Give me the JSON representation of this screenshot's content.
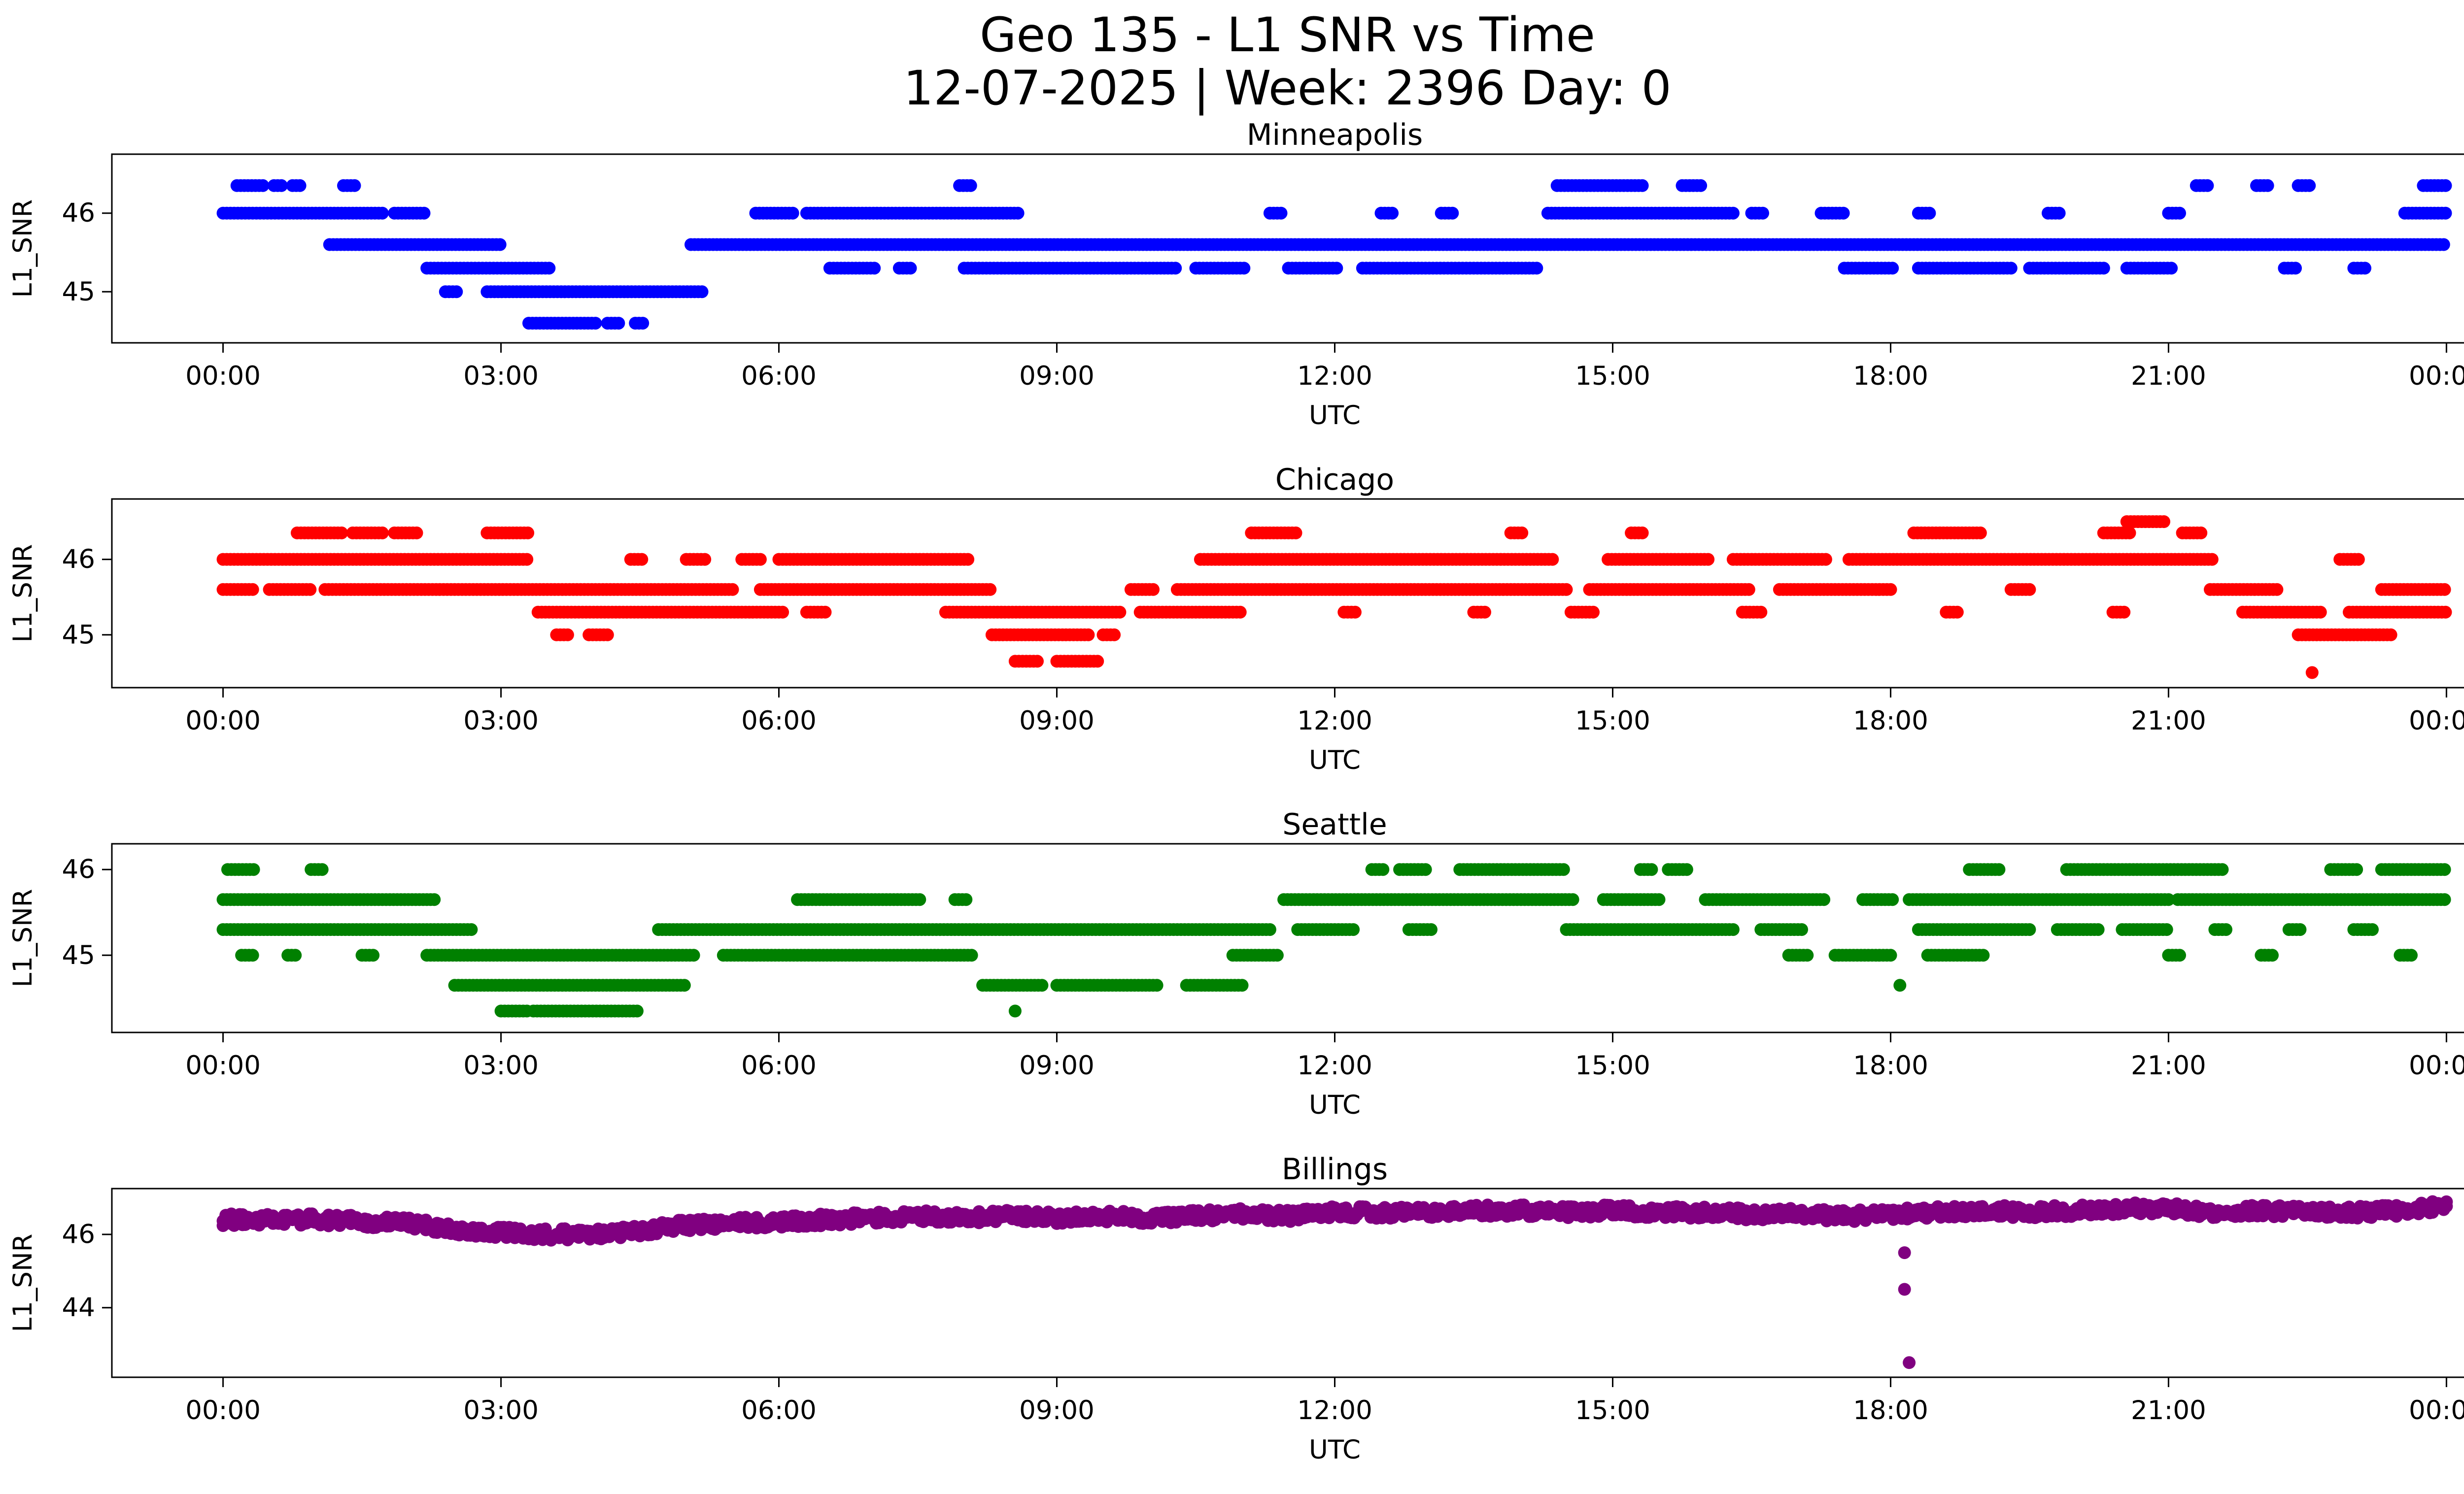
{
  "header": {
    "title_line1": "Geo 135 - L1 SNR vs Time",
    "title_line2": "12-07-2025 | Week: 2396 Day: 0"
  },
  "chart_data": [
    {
      "type": "scatter",
      "title": "Minneapolis",
      "color": "#0000ff",
      "xlabel": "UTC",
      "ylabel": "L1_SNR",
      "xlim": [
        -1.2,
        25.2
      ],
      "ylim": [
        44.35,
        46.75
      ],
      "yticks": [
        45,
        46
      ],
      "xticks": [
        0,
        3,
        6,
        9,
        12,
        15,
        18,
        21,
        24
      ],
      "xtick_labels": [
        "00:00",
        "03:00",
        "06:00",
        "09:00",
        "12:00",
        "15:00",
        "18:00",
        "21:00",
        "00:00"
      ],
      "bands": [
        {
          "y": 46.35,
          "segments": [
            [
              0.15,
              0.45
            ],
            [
              0.55,
              0.65
            ],
            [
              0.75,
              0.85
            ],
            [
              1.3,
              1.45
            ],
            [
              7.95,
              8.1
            ],
            [
              14.4,
              15.35
            ],
            [
              15.75,
              15.95
            ],
            [
              21.3,
              21.45
            ],
            [
              21.95,
              22.1
            ],
            [
              22.4,
              22.55
            ],
            [
              23.75,
              24.0
            ]
          ]
        },
        {
          "y": 46.0,
          "segments": [
            [
              0.0,
              1.75
            ],
            [
              1.85,
              2.2
            ],
            [
              5.75,
              6.15
            ],
            [
              6.3,
              8.6
            ],
            [
              11.3,
              11.45
            ],
            [
              12.5,
              12.65
            ],
            [
              13.15,
              13.3
            ],
            [
              14.3,
              16.3
            ],
            [
              16.5,
              16.65
            ],
            [
              17.25,
              17.5
            ],
            [
              18.3,
              18.45
            ],
            [
              19.7,
              19.85
            ],
            [
              21.0,
              21.15
            ],
            [
              23.55,
              24.0
            ]
          ]
        },
        {
          "y": 45.6,
          "segments": [
            [
              1.15,
              3.0
            ],
            [
              5.05,
              24.0
            ]
          ]
        },
        {
          "y": 45.3,
          "segments": [
            [
              2.2,
              3.55
            ],
            [
              6.55,
              7.05
            ],
            [
              7.3,
              7.45
            ],
            [
              8.0,
              10.3
            ],
            [
              10.5,
              11.05
            ],
            [
              11.5,
              12.05
            ],
            [
              12.3,
              14.2
            ],
            [
              17.5,
              18.05
            ],
            [
              18.3,
              19.3
            ],
            [
              19.5,
              20.3
            ],
            [
              20.55,
              21.05
            ],
            [
              22.25,
              22.4
            ],
            [
              23.0,
              23.15
            ]
          ]
        },
        {
          "y": 45.0,
          "segments": [
            [
              2.4,
              2.55
            ],
            [
              2.85,
              5.2
            ]
          ]
        },
        {
          "y": 44.6,
          "segments": [
            [
              3.3,
              4.05
            ],
            [
              4.15,
              4.3
            ],
            [
              4.45,
              4.55
            ]
          ]
        }
      ],
      "points": []
    },
    {
      "type": "scatter",
      "title": "Chicago",
      "color": "#ff0000",
      "xlabel": "UTC",
      "ylabel": "L1_SNR",
      "xlim": [
        -1.2,
        25.2
      ],
      "ylim": [
        44.3,
        46.8
      ],
      "yticks": [
        45,
        46
      ],
      "xticks": [
        0,
        3,
        6,
        9,
        12,
        15,
        18,
        21,
        24
      ],
      "xtick_labels": [
        "00:00",
        "03:00",
        "06:00",
        "09:00",
        "12:00",
        "15:00",
        "18:00",
        "21:00",
        "00:00"
      ],
      "bands": [
        {
          "y": 46.5,
          "segments": [
            [
              20.55,
              20.95
            ]
          ]
        },
        {
          "y": 46.35,
          "segments": [
            [
              0.8,
              1.3
            ],
            [
              1.4,
              1.75
            ],
            [
              1.85,
              2.1
            ],
            [
              2.85,
              3.3
            ],
            [
              11.1,
              11.6
            ],
            [
              13.9,
              14.05
            ],
            [
              15.2,
              15.35
            ],
            [
              18.25,
              19.0
            ],
            [
              20.3,
              20.6
            ],
            [
              21.15,
              21.35
            ]
          ]
        },
        {
          "y": 46.0,
          "segments": [
            [
              0.0,
              3.3
            ],
            [
              4.4,
              4.55
            ],
            [
              5.0,
              5.2
            ],
            [
              5.6,
              5.8
            ],
            [
              6.0,
              8.05
            ],
            [
              10.55,
              14.35
            ],
            [
              14.95,
              16.05
            ],
            [
              16.3,
              17.3
            ],
            [
              17.55,
              21.5
            ],
            [
              22.85,
              23.05
            ]
          ]
        },
        {
          "y": 45.6,
          "segments": [
            [
              0.0,
              0.35
            ],
            [
              0.5,
              0.95
            ],
            [
              1.1,
              5.5
            ],
            [
              5.8,
              8.3
            ],
            [
              9.8,
              10.05
            ],
            [
              10.3,
              14.5
            ],
            [
              14.75,
              16.5
            ],
            [
              16.8,
              18.0
            ],
            [
              19.3,
              19.5
            ],
            [
              21.45,
              22.2
            ],
            [
              23.3,
              24.0
            ]
          ]
        },
        {
          "y": 45.3,
          "segments": [
            [
              3.4,
              6.05
            ],
            [
              6.3,
              6.5
            ],
            [
              7.8,
              9.7
            ],
            [
              9.9,
              11.0
            ],
            [
              12.1,
              12.25
            ],
            [
              13.5,
              13.65
            ],
            [
              14.55,
              14.8
            ],
            [
              16.4,
              16.6
            ],
            [
              18.6,
              18.75
            ],
            [
              20.4,
              20.55
            ],
            [
              21.8,
              22.65
            ],
            [
              22.95,
              24.0
            ]
          ]
        },
        {
          "y": 45.0,
          "segments": [
            [
              3.6,
              3.75
            ],
            [
              3.95,
              4.15
            ],
            [
              8.3,
              9.35
            ],
            [
              9.5,
              9.65
            ],
            [
              22.4,
              23.4
            ]
          ]
        },
        {
          "y": 44.65,
          "segments": [
            [
              8.55,
              8.8
            ],
            [
              9.0,
              9.45
            ]
          ]
        }
      ],
      "points": [
        [
          22.55,
          44.5
        ]
      ]
    },
    {
      "type": "scatter",
      "title": "Seattle",
      "color": "#008000",
      "xlabel": "UTC",
      "ylabel": "L1_SNR",
      "xlim": [
        -1.2,
        25.2
      ],
      "ylim": [
        44.1,
        46.3
      ],
      "yticks": [
        45,
        46
      ],
      "xticks": [
        0,
        3,
        6,
        9,
        12,
        15,
        18,
        21,
        24
      ],
      "xtick_labels": [
        "00:00",
        "03:00",
        "06:00",
        "09:00",
        "12:00",
        "15:00",
        "18:00",
        "21:00",
        "00:00"
      ],
      "bands": [
        {
          "y": 46.0,
          "segments": [
            [
              0.05,
              0.35
            ],
            [
              0.95,
              1.1
            ],
            [
              12.4,
              12.55
            ],
            [
              12.7,
              13.0
            ],
            [
              13.35,
              14.5
            ],
            [
              15.3,
              15.45
            ],
            [
              15.6,
              15.8
            ],
            [
              18.85,
              19.2
            ],
            [
              19.9,
              21.6
            ],
            [
              22.75,
              23.05
            ],
            [
              23.3,
              24.0
            ]
          ]
        },
        {
          "y": 45.65,
          "segments": [
            [
              0.0,
              2.3
            ],
            [
              6.2,
              7.55
            ],
            [
              7.9,
              8.05
            ],
            [
              11.45,
              14.6
            ],
            [
              14.9,
              15.5
            ],
            [
              16.0,
              17.3
            ],
            [
              17.7,
              18.05
            ],
            [
              18.2,
              21.0
            ],
            [
              21.1,
              24.0
            ]
          ]
        },
        {
          "y": 45.3,
          "segments": [
            [
              0.0,
              2.7
            ],
            [
              4.7,
              11.3
            ],
            [
              11.6,
              12.2
            ],
            [
              12.8,
              13.05
            ],
            [
              14.5,
              16.3
            ],
            [
              16.6,
              17.05
            ],
            [
              18.3,
              19.5
            ],
            [
              19.8,
              20.25
            ],
            [
              20.5,
              21.0
            ],
            [
              21.5,
              21.65
            ],
            [
              22.3,
              22.45
            ],
            [
              23.0,
              23.2
            ]
          ]
        },
        {
          "y": 45.0,
          "segments": [
            [
              0.2,
              0.35
            ],
            [
              0.7,
              0.8
            ],
            [
              1.5,
              1.65
            ],
            [
              2.2,
              5.1
            ],
            [
              5.4,
              8.1
            ],
            [
              10.9,
              11.4
            ],
            [
              16.9,
              17.1
            ],
            [
              17.4,
              18.0
            ],
            [
              18.4,
              19.0
            ],
            [
              21.0,
              21.15
            ],
            [
              22.0,
              22.15
            ],
            [
              23.5,
              23.65
            ]
          ]
        },
        {
          "y": 44.65,
          "segments": [
            [
              2.5,
              5.0
            ],
            [
              8.2,
              8.85
            ],
            [
              9.0,
              10.1
            ],
            [
              10.4,
              11.0
            ]
          ]
        },
        {
          "y": 44.35,
          "segments": [
            [
              3.0,
              3.3
            ],
            [
              3.35,
              4.5
            ]
          ]
        }
      ],
      "points": [
        [
          8.55,
          44.35
        ],
        [
          18.1,
          44.65
        ]
      ]
    },
    {
      "type": "scatter",
      "title": "Billings",
      "color": "#800080",
      "xlabel": "UTC",
      "ylabel": "L1_SNR",
      "xlim": [
        -1.2,
        25.2
      ],
      "ylim": [
        42.1,
        47.25
      ],
      "yticks": [
        44,
        46
      ],
      "xticks": [
        0,
        3,
        6,
        9,
        12,
        15,
        18,
        21,
        24
      ],
      "xtick_labels": [
        "00:00",
        "03:00",
        "06:00",
        "09:00",
        "12:00",
        "15:00",
        "18:00",
        "21:00",
        "00:00"
      ],
      "bands": [],
      "jitter": 0.16,
      "trend": [
        [
          0,
          46.4
        ],
        [
          0.5,
          46.4
        ],
        [
          1,
          46.4
        ],
        [
          1.5,
          46.35
        ],
        [
          2,
          46.3
        ],
        [
          2.5,
          46.15
        ],
        [
          3,
          46.05
        ],
        [
          3.5,
          46.0
        ],
        [
          4,
          46.0
        ],
        [
          4.5,
          46.1
        ],
        [
          5,
          46.25
        ],
        [
          5.5,
          46.3
        ],
        [
          6,
          46.35
        ],
        [
          6.5,
          46.4
        ],
        [
          7,
          46.45
        ],
        [
          7.5,
          46.5
        ],
        [
          8,
          46.45
        ],
        [
          8.5,
          46.5
        ],
        [
          9,
          46.45
        ],
        [
          9.5,
          46.5
        ],
        [
          10,
          46.45
        ],
        [
          10.5,
          46.5
        ],
        [
          11,
          46.55
        ],
        [
          11.5,
          46.5
        ],
        [
          12,
          46.6
        ],
        [
          12.5,
          46.6
        ],
        [
          13,
          46.6
        ],
        [
          13.5,
          46.65
        ],
        [
          14,
          46.65
        ],
        [
          14.5,
          46.6
        ],
        [
          15,
          46.65
        ],
        [
          15.5,
          46.6
        ],
        [
          16,
          46.6
        ],
        [
          16.5,
          46.55
        ],
        [
          17,
          46.55
        ],
        [
          17.5,
          46.5
        ],
        [
          18,
          46.55
        ],
        [
          18.5,
          46.6
        ],
        [
          19,
          46.65
        ],
        [
          19.5,
          46.6
        ],
        [
          20,
          46.65
        ],
        [
          20.5,
          46.7
        ],
        [
          21,
          46.7
        ],
        [
          21.5,
          46.6
        ],
        [
          22,
          46.65
        ],
        [
          22.5,
          46.6
        ],
        [
          23,
          46.6
        ],
        [
          23.5,
          46.65
        ],
        [
          24,
          46.8
        ]
      ],
      "points": [
        [
          18.15,
          45.5
        ],
        [
          18.15,
          44.5
        ],
        [
          18.2,
          42.5
        ]
      ]
    }
  ]
}
